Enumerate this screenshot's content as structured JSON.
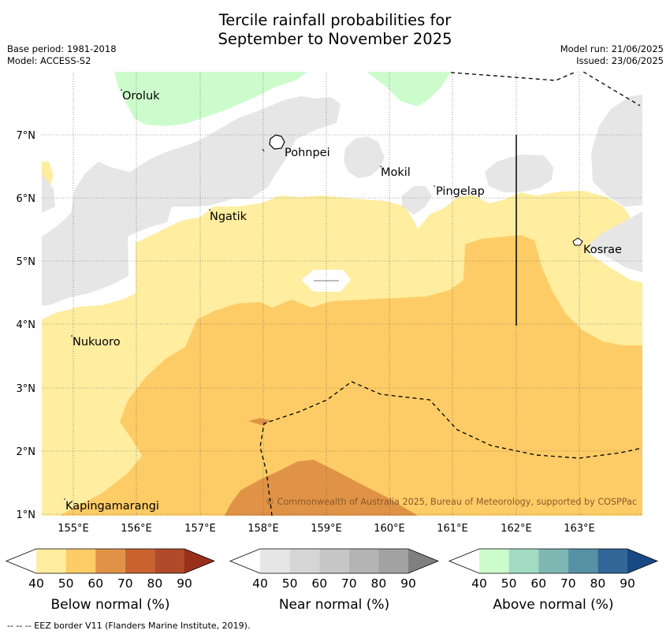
{
  "title_line1": "Tercile rainfall probabilities for",
  "title_line2": "September to November 2025",
  "base_period": "Base period: 1981-2018",
  "model": "Model: ACCESS-S2",
  "model_run": "Model run: 21/06/2025",
  "issued": "Issued: 23/06/2025",
  "map": {
    "lon_ticks": [
      "155°E",
      "156°E",
      "157°E",
      "158°E",
      "159°E",
      "160°E",
      "161°E",
      "162°E",
      "163°E"
    ],
    "lat_ticks": [
      "1°N",
      "2°N",
      "3°N",
      "4°N",
      "5°N",
      "6°N",
      "7°N"
    ],
    "places": [
      {
        "name": "Oroluk"
      },
      {
        "name": "Pohnpei"
      },
      {
        "name": "Mokil"
      },
      {
        "name": "Pingelap"
      },
      {
        "name": "Ngatik"
      },
      {
        "name": "Kosrae"
      },
      {
        "name": "Nukuoro"
      },
      {
        "name": "Kapingamarangi"
      }
    ],
    "copyright": "© Commonwealth of Australia 2025, Bureau of Meteorology, supported by COSPPac"
  },
  "colorbars": [
    {
      "label": "Below normal (%)",
      "ticks": [
        "40",
        "50",
        "60",
        "70",
        "80",
        "90"
      ],
      "colors": [
        "#ffffff",
        "#ffeda0",
        "#fecc66",
        "#e09346",
        "#c9622f",
        "#b04a28",
        "#9a2f1c"
      ]
    },
    {
      "label": "Near normal (%)",
      "ticks": [
        "40",
        "50",
        "60",
        "70",
        "80",
        "90"
      ],
      "colors": [
        "#ffffff",
        "#e6e6e6",
        "#d6d6d6",
        "#c6c6c6",
        "#b4b4b4",
        "#a2a2a2",
        "#808080"
      ]
    },
    {
      "label": "Above normal (%)",
      "ticks": [
        "40",
        "50",
        "60",
        "70",
        "80",
        "90"
      ],
      "colors": [
        "#ffffff",
        "#ccfccc",
        "#a2dbc4",
        "#7fb7b2",
        "#5791a5",
        "#336799",
        "#174a85"
      ]
    }
  ],
  "eez_note": "--  --  -- EEZ border V11 (Flanders Marine Institute, 2019)."
}
